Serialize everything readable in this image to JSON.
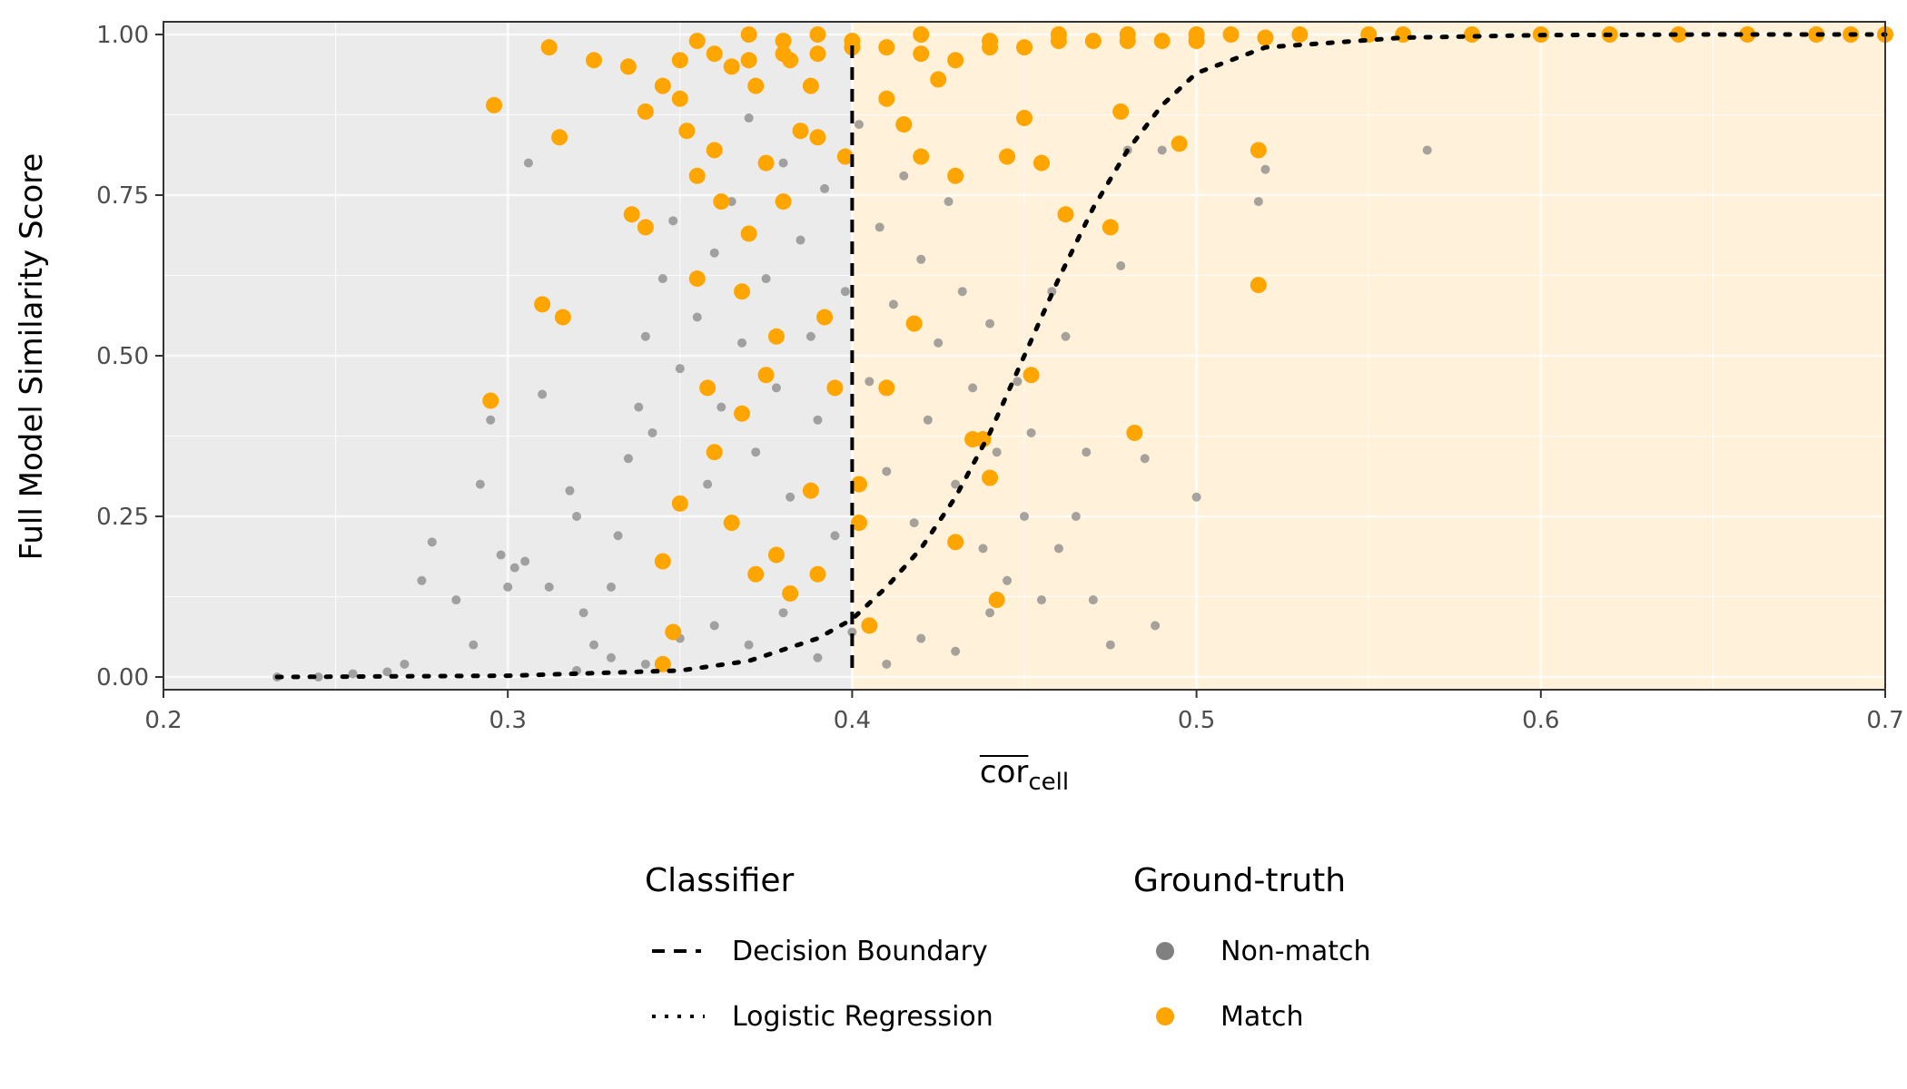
{
  "chart_data": {
    "type": "scatter",
    "title": "",
    "xlabel_main": "cor",
    "xlabel_sub": "cell",
    "ylabel": "Full Model Similarity Score",
    "xlim": [
      0.2,
      0.7
    ],
    "ylim": [
      0.0,
      1.0
    ],
    "x_ticks": [
      0.2,
      0.3,
      0.4,
      0.5,
      0.6,
      0.7
    ],
    "x_tick_labels": [
      "0.2",
      "0.3",
      "0.4",
      "0.5",
      "0.6",
      "0.7"
    ],
    "y_ticks": [
      0.0,
      0.25,
      0.5,
      0.75,
      1.0
    ],
    "y_tick_labels": [
      "0.00",
      "0.25",
      "0.50",
      "0.75",
      "1.00"
    ],
    "grid": true,
    "decision_boundary_x": 0.4,
    "regions": [
      {
        "x_from": 0.2,
        "x_to": 0.4,
        "color": "#ebebeb"
      },
      {
        "x_from": 0.4,
        "x_to": 0.7,
        "color": "#fff1da"
      }
    ],
    "colors": {
      "non_match": "#808080",
      "match": "#ffa500",
      "line": "#000000"
    },
    "logistic_curve": {
      "x": [
        0.233,
        0.3,
        0.35,
        0.37,
        0.39,
        0.4,
        0.41,
        0.42,
        0.43,
        0.44,
        0.45,
        0.46,
        0.47,
        0.48,
        0.49,
        0.5,
        0.52,
        0.56,
        0.6,
        0.65,
        0.7
      ],
      "y": [
        0.0,
        0.002,
        0.01,
        0.025,
        0.06,
        0.09,
        0.14,
        0.2,
        0.28,
        0.38,
        0.5,
        0.62,
        0.73,
        0.82,
        0.89,
        0.94,
        0.98,
        0.995,
        0.999,
        1.0,
        1.0
      ]
    },
    "series": [
      {
        "name": "Non-match",
        "points": [
          [
            0.233,
            0.0
          ],
          [
            0.245,
            0.0
          ],
          [
            0.255,
            0.005
          ],
          [
            0.265,
            0.008
          ],
          [
            0.27,
            0.02
          ],
          [
            0.275,
            0.15
          ],
          [
            0.278,
            0.21
          ],
          [
            0.285,
            0.12
          ],
          [
            0.29,
            0.05
          ],
          [
            0.292,
            0.3
          ],
          [
            0.295,
            0.4
          ],
          [
            0.298,
            0.19
          ],
          [
            0.3,
            0.14
          ],
          [
            0.302,
            0.17
          ],
          [
            0.305,
            0.18
          ],
          [
            0.306,
            0.8
          ],
          [
            0.31,
            0.44
          ],
          [
            0.312,
            0.14
          ],
          [
            0.318,
            0.29
          ],
          [
            0.32,
            0.25
          ],
          [
            0.322,
            0.1
          ],
          [
            0.325,
            0.05
          ],
          [
            0.33,
            0.14
          ],
          [
            0.332,
            0.22
          ],
          [
            0.335,
            0.34
          ],
          [
            0.338,
            0.42
          ],
          [
            0.34,
            0.53
          ],
          [
            0.342,
            0.38
          ],
          [
            0.345,
            0.62
          ],
          [
            0.348,
            0.71
          ],
          [
            0.35,
            0.48
          ],
          [
            0.352,
            0.85
          ],
          [
            0.355,
            0.56
          ],
          [
            0.358,
            0.3
          ],
          [
            0.36,
            0.66
          ],
          [
            0.362,
            0.42
          ],
          [
            0.365,
            0.74
          ],
          [
            0.368,
            0.52
          ],
          [
            0.37,
            0.87
          ],
          [
            0.372,
            0.35
          ],
          [
            0.375,
            0.62
          ],
          [
            0.378,
            0.45
          ],
          [
            0.38,
            0.8
          ],
          [
            0.382,
            0.28
          ],
          [
            0.385,
            0.68
          ],
          [
            0.388,
            0.53
          ],
          [
            0.39,
            0.4
          ],
          [
            0.392,
            0.76
          ],
          [
            0.395,
            0.22
          ],
          [
            0.398,
            0.6
          ],
          [
            0.402,
            0.86
          ],
          [
            0.405,
            0.46
          ],
          [
            0.408,
            0.7
          ],
          [
            0.41,
            0.32
          ],
          [
            0.412,
            0.58
          ],
          [
            0.415,
            0.78
          ],
          [
            0.418,
            0.24
          ],
          [
            0.42,
            0.65
          ],
          [
            0.422,
            0.4
          ],
          [
            0.425,
            0.52
          ],
          [
            0.428,
            0.74
          ],
          [
            0.43,
            0.3
          ],
          [
            0.432,
            0.6
          ],
          [
            0.435,
            0.45
          ],
          [
            0.438,
            0.2
          ],
          [
            0.44,
            0.55
          ],
          [
            0.442,
            0.35
          ],
          [
            0.445,
            0.15
          ],
          [
            0.448,
            0.46
          ],
          [
            0.45,
            0.25
          ],
          [
            0.452,
            0.38
          ],
          [
            0.455,
            0.12
          ],
          [
            0.458,
            0.6
          ],
          [
            0.46,
            0.2
          ],
          [
            0.462,
            0.53
          ],
          [
            0.465,
            0.25
          ],
          [
            0.468,
            0.35
          ],
          [
            0.47,
            0.12
          ],
          [
            0.475,
            0.05
          ],
          [
            0.478,
            0.64
          ],
          [
            0.48,
            0.82
          ],
          [
            0.485,
            0.34
          ],
          [
            0.488,
            0.08
          ],
          [
            0.49,
            0.82
          ],
          [
            0.5,
            0.28
          ],
          [
            0.518,
            0.74
          ],
          [
            0.52,
            0.79
          ],
          [
            0.567,
            0.82
          ],
          [
            0.36,
            0.08
          ],
          [
            0.37,
            0.05
          ],
          [
            0.38,
            0.1
          ],
          [
            0.39,
            0.03
          ],
          [
            0.4,
            0.07
          ],
          [
            0.41,
            0.02
          ],
          [
            0.42,
            0.06
          ],
          [
            0.43,
            0.04
          ],
          [
            0.44,
            0.1
          ],
          [
            0.35,
            0.06
          ],
          [
            0.34,
            0.02
          ],
          [
            0.33,
            0.03
          ],
          [
            0.32,
            0.01
          ]
        ]
      },
      {
        "name": "Match",
        "points": [
          [
            0.296,
            0.89
          ],
          [
            0.312,
            0.98
          ],
          [
            0.315,
            0.84
          ],
          [
            0.31,
            0.58
          ],
          [
            0.316,
            0.56
          ],
          [
            0.295,
            0.43
          ],
          [
            0.325,
            0.96
          ],
          [
            0.335,
            0.95
          ],
          [
            0.34,
            0.88
          ],
          [
            0.345,
            0.92
          ],
          [
            0.35,
            0.9
          ],
          [
            0.352,
            0.85
          ],
          [
            0.355,
            0.78
          ],
          [
            0.36,
            0.82
          ],
          [
            0.362,
            0.74
          ],
          [
            0.365,
            0.95
          ],
          [
            0.368,
            0.6
          ],
          [
            0.37,
            0.69
          ],
          [
            0.372,
            0.92
          ],
          [
            0.375,
            0.8
          ],
          [
            0.378,
            0.53
          ],
          [
            0.38,
            0.74
          ],
          [
            0.382,
            0.96
          ],
          [
            0.385,
            0.85
          ],
          [
            0.388,
            0.92
          ],
          [
            0.39,
            0.84
          ],
          [
            0.395,
            0.45
          ],
          [
            0.398,
            0.81
          ],
          [
            0.336,
            0.72
          ],
          [
            0.34,
            0.7
          ],
          [
            0.345,
            0.18
          ],
          [
            0.35,
            0.27
          ],
          [
            0.355,
            0.62
          ],
          [
            0.358,
            0.45
          ],
          [
            0.36,
            0.35
          ],
          [
            0.365,
            0.24
          ],
          [
            0.368,
            0.41
          ],
          [
            0.372,
            0.16
          ],
          [
            0.375,
            0.47
          ],
          [
            0.378,
            0.19
          ],
          [
            0.382,
            0.13
          ],
          [
            0.388,
            0.29
          ],
          [
            0.39,
            0.16
          ],
          [
            0.392,
            0.56
          ],
          [
            0.348,
            0.07
          ],
          [
            0.345,
            0.02
          ],
          [
            0.402,
            0.3
          ],
          [
            0.402,
            0.24
          ],
          [
            0.405,
            0.08
          ],
          [
            0.41,
            0.9
          ],
          [
            0.415,
            0.86
          ],
          [
            0.418,
            0.55
          ],
          [
            0.42,
            0.81
          ],
          [
            0.425,
            0.93
          ],
          [
            0.43,
            0.78
          ],
          [
            0.435,
            0.37
          ],
          [
            0.438,
            0.37
          ],
          [
            0.44,
            0.31
          ],
          [
            0.442,
            0.12
          ],
          [
            0.445,
            0.81
          ],
          [
            0.45,
            0.87
          ],
          [
            0.452,
            0.47
          ],
          [
            0.455,
            0.8
          ],
          [
            0.462,
            0.72
          ],
          [
            0.475,
            0.7
          ],
          [
            0.478,
            0.88
          ],
          [
            0.482,
            0.38
          ],
          [
            0.495,
            0.83
          ],
          [
            0.518,
            0.82
          ],
          [
            0.518,
            0.61
          ],
          [
            0.43,
            0.21
          ],
          [
            0.41,
            0.45
          ],
          [
            0.355,
            0.99
          ],
          [
            0.37,
            1.0
          ],
          [
            0.38,
            0.99
          ],
          [
            0.39,
            1.0
          ],
          [
            0.4,
            0.99
          ],
          [
            0.42,
            1.0
          ],
          [
            0.44,
            0.99
          ],
          [
            0.46,
            1.0
          ],
          [
            0.48,
            1.0
          ],
          [
            0.5,
            1.0
          ],
          [
            0.52,
            0.995
          ],
          [
            0.55,
            1.0
          ],
          [
            0.58,
            1.0
          ],
          [
            0.62,
            1.0
          ],
          [
            0.66,
            1.0
          ],
          [
            0.69,
            1.0
          ],
          [
            0.7,
            1.0
          ],
          [
            0.36,
            0.97
          ],
          [
            0.38,
            0.97
          ],
          [
            0.4,
            0.98
          ],
          [
            0.42,
            0.97
          ],
          [
            0.44,
            0.98
          ],
          [
            0.46,
            0.99
          ],
          [
            0.48,
            0.99
          ],
          [
            0.5,
            0.99
          ],
          [
            0.35,
            0.96
          ],
          [
            0.37,
            0.96
          ],
          [
            0.39,
            0.97
          ],
          [
            0.41,
            0.98
          ],
          [
            0.43,
            0.96
          ],
          [
            0.45,
            0.98
          ],
          [
            0.47,
            0.99
          ],
          [
            0.49,
            0.99
          ],
          [
            0.51,
            1.0
          ],
          [
            0.53,
            1.0
          ],
          [
            0.56,
            1.0
          ],
          [
            0.6,
            1.0
          ],
          [
            0.64,
            1.0
          ],
          [
            0.68,
            1.0
          ]
        ]
      }
    ],
    "legend": {
      "placement": "bottom",
      "classifier_title": "Classifier",
      "classifier_items": [
        "Decision Boundary",
        "Logistic Regression"
      ],
      "ground_truth_title": "Ground-truth",
      "ground_truth_items": [
        "Non-match",
        "Match"
      ]
    }
  }
}
